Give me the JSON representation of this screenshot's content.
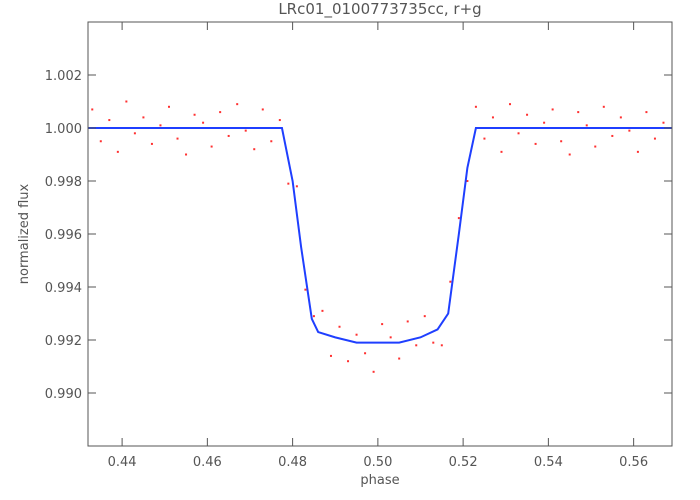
{
  "chart_data": {
    "type": "scatter",
    "title": "LRc01_0100773735cc, r+g",
    "x_label": "phase",
    "y_label": "normalized flux",
    "xlim": [
      0.432,
      0.569
    ],
    "ylim": [
      0.988,
      1.004
    ],
    "xticks": [
      0.44,
      0.46,
      0.48,
      {
        "value": 0.5,
        "label": "0.50"
      },
      0.52,
      0.54,
      0.56
    ],
    "yticks": [
      {
        "value": 0.99,
        "label": "0.990"
      },
      0.992,
      0.994,
      0.996,
      0.998,
      {
        "value": 1.0,
        "label": "1.000"
      },
      1.002
    ],
    "grid": false,
    "series": [
      {
        "type": "scatter",
        "color": "#ff3030",
        "x": [
          0.433,
          0.435,
          0.437,
          0.439,
          0.441,
          0.443,
          0.445,
          0.447,
          0.449,
          0.451,
          0.453,
          0.455,
          0.457,
          0.459,
          0.461,
          0.463,
          0.465,
          0.467,
          0.469,
          0.471,
          0.473,
          0.475,
          0.477,
          0.479,
          0.481,
          0.483,
          0.485,
          0.487,
          0.489,
          0.491,
          0.493,
          0.495,
          0.497,
          0.499,
          0.501,
          0.503,
          0.505,
          0.507,
          0.509,
          0.511,
          0.513,
          0.515,
          0.517,
          0.519,
          0.521,
          0.523,
          0.525,
          0.527,
          0.529,
          0.531,
          0.533,
          0.535,
          0.537,
          0.539,
          0.541,
          0.543,
          0.545,
          0.547,
          0.549,
          0.551,
          0.553,
          0.555,
          0.557,
          0.559,
          0.561,
          0.563,
          0.565,
          0.567
        ],
        "values": [
          1.0007,
          0.9995,
          1.0003,
          0.9991,
          1.001,
          0.9998,
          1.0004,
          0.9994,
          1.0001,
          1.0008,
          0.9996,
          0.999,
          1.0005,
          1.0002,
          0.9993,
          1.0006,
          0.9997,
          1.0009,
          0.9999,
          0.9992,
          1.0007,
          0.9995,
          1.0003,
          0.9979,
          0.9978,
          0.9939,
          0.9929,
          0.9931,
          0.9914,
          0.9925,
          0.9912,
          0.9922,
          0.9915,
          0.9908,
          0.9926,
          0.9921,
          0.9913,
          0.9927,
          0.9918,
          0.9929,
          0.9919,
          0.9918,
          0.9942,
          0.9966,
          0.998,
          1.0008,
          0.9996,
          1.0004,
          0.9991,
          1.0009,
          0.9998,
          1.0005,
          0.9994,
          1.0002,
          1.0007,
          0.9995,
          0.999,
          1.0006,
          1.0001,
          0.9993,
          1.0008,
          0.9997,
          1.0004,
          0.9999,
          0.9991,
          1.0006,
          0.9996,
          1.0002
        ]
      },
      {
        "type": "line",
        "color": "#1f3fff",
        "x": [
          0.432,
          0.4775,
          0.48,
          0.482,
          0.4845,
          0.486,
          0.49,
          0.495,
          0.5,
          0.505,
          0.51,
          0.514,
          0.5165,
          0.519,
          0.521,
          0.523,
          0.569
        ],
        "values": [
          1.0,
          1.0,
          0.998,
          0.9955,
          0.9928,
          0.9923,
          0.9921,
          0.9919,
          0.9919,
          0.9919,
          0.9921,
          0.9924,
          0.993,
          0.996,
          0.9985,
          1.0,
          1.0
        ]
      }
    ]
  }
}
